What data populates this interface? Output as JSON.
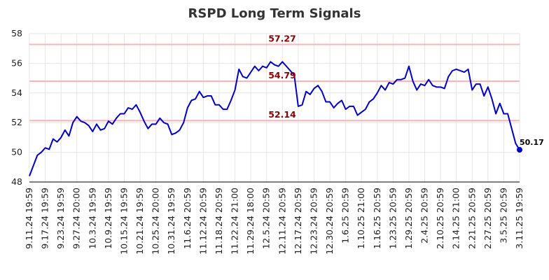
{
  "chart_data": {
    "type": "line",
    "title": "RSPD Long Term Signals",
    "xlabel": "",
    "ylabel": "",
    "ylim": [
      48,
      58
    ],
    "yticks": [
      48,
      50,
      52,
      54,
      56,
      58
    ],
    "grid": true,
    "colors": {
      "line": "#0000cc",
      "level_line": "#ffb3b3",
      "level_text": "#8b0000",
      "grid": "#e6e6e6"
    },
    "x_tick_labels": [
      "9.11.24 19:59",
      "9.17.24 19:59",
      "9.23.24 19:59",
      "9.27.24 20:00",
      "10.3.24 19:59",
      "10.9.24 19:59",
      "10.15.24 19:59",
      "10.21.24 19:59",
      "10.25.24 20:00",
      "10.31.24 19:59",
      "11.6.24 20:59",
      "11.12.24 20:59",
      "11.18.24 20:59",
      "11.22.24 21:00",
      "11.29.24 18:00",
      "12.5.24 20:59",
      "12.11.24 20:59",
      "12.17.24 20:59",
      "12.23.24 20:59",
      "12.30.24 20:59",
      "1.6.25 20:59",
      "1.10.25 21:00",
      "1.16.25 20:59",
      "1.23.25 20:59",
      "1.29.25 20:59",
      "2.4.25 20:59",
      "2.10.25 20:59",
      "2.14.25 21:00",
      "2.21.25 20:59",
      "2.27.25 20:59",
      "3.5.25 20:59",
      "3.11.25 19:59"
    ],
    "levels": [
      {
        "value": 57.27,
        "label": "57.27"
      },
      {
        "value": 54.79,
        "label": "54.79"
      },
      {
        "value": 52.14,
        "label": "52.14"
      }
    ],
    "last_point": {
      "value": 50.17,
      "label": "50.17"
    },
    "series": [
      {
        "values": [
          48.4,
          49.1,
          49.8,
          50.0,
          50.3,
          50.2,
          50.9,
          50.7,
          51.0,
          51.5,
          51.1,
          52.0,
          52.4,
          52.1,
          52.0,
          51.8,
          51.4,
          51.9,
          51.5,
          51.6,
          52.1,
          51.9,
          52.3,
          52.6,
          52.6,
          53.0,
          52.9,
          53.2,
          52.7,
          52.1,
          51.6,
          51.9,
          51.9,
          52.3,
          52.0,
          51.9,
          51.2,
          51.3,
          51.5,
          52.0,
          53.0,
          53.5,
          53.6,
          54.1,
          53.7,
          53.8,
          53.8,
          53.2,
          53.2,
          52.9,
          52.9,
          53.5,
          54.2,
          55.6,
          55.1,
          55.0,
          55.4,
          55.8,
          55.5,
          55.8,
          55.7,
          56.1,
          55.9,
          55.8,
          56.1,
          55.8,
          55.5,
          55.2,
          53.1,
          53.2,
          54.1,
          53.9,
          54.3,
          54.5,
          54.1,
          53.4,
          53.4,
          53.0,
          53.3,
          53.5,
          52.9,
          53.1,
          53.1,
          52.5,
          52.7,
          52.9,
          53.4,
          53.6,
          54.0,
          54.5,
          54.2,
          54.7,
          54.6,
          54.9,
          54.9,
          55.0,
          55.8,
          54.8,
          54.2,
          54.6,
          54.5,
          54.9,
          54.5,
          54.4,
          54.4,
          54.3,
          55.1,
          55.5,
          55.6,
          55.5,
          55.4,
          55.6,
          54.2,
          54.6,
          54.6,
          53.8,
          54.4,
          53.6,
          52.6,
          53.3,
          52.6,
          52.6,
          51.6,
          50.6,
          50.17
        ]
      }
    ]
  }
}
